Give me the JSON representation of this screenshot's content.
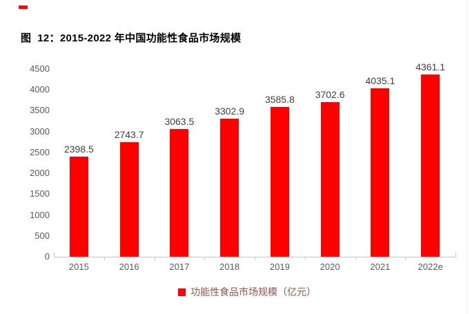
{
  "figure": {
    "title": "图  12：2015-2022 年中国功能性食品市场规模"
  },
  "chart_data": {
    "type": "bar",
    "categories": [
      "2015",
      "2016",
      "2017",
      "2018",
      "2019",
      "2020",
      "2021",
      "2022e"
    ],
    "series": [
      {
        "name": "功能性食品市场规模（亿元）",
        "values": [
          2398.5,
          2743.7,
          3063.5,
          3302.9,
          3585.8,
          3702.6,
          4035.1,
          4361.1
        ]
      }
    ],
    "value_labels": [
      "2398.5",
      "2743.7",
      "3063.5",
      "3302.9",
      "3585.8",
      "3702.6",
      "4035.1",
      "4361.1"
    ],
    "ylim": [
      0,
      4500
    ],
    "yticks": [
      0,
      500,
      1000,
      1500,
      2000,
      2500,
      3000,
      3500,
      4000,
      4500
    ],
    "grid": false,
    "legend": {
      "label": "功能性食品市场规模（亿元）",
      "position": "bottom"
    },
    "colors": {
      "bar": "#FF0000",
      "axis_line": "#C6C6C6",
      "axis_label": "#595959",
      "value_label": "#3F3F3F",
      "legend_text": "#9A524E",
      "legend_swatch": "#FF0000"
    }
  },
  "decorations": {
    "corner_marker_color": "#FF0000",
    "right_border_color": "#EBEBEB"
  }
}
